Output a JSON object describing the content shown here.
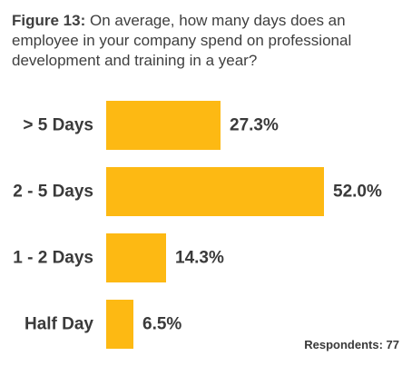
{
  "title": {
    "lead": "Figure 13:",
    "text": " On average, how many days does an employee in your company spend on professional development and training in a year?"
  },
  "footnote": "Respondents: 77",
  "colors": {
    "bar": "#FDB913",
    "text": "#3a3a3a"
  },
  "chart_data": {
    "type": "bar",
    "orientation": "horizontal",
    "categories": [
      "> 5 Days",
      "2 - 5 Days",
      "1 - 2 Days",
      "Half Day"
    ],
    "values": [
      27.3,
      52.0,
      14.3,
      6.5
    ],
    "value_labels": [
      "27.3%",
      "52.0%",
      "14.3%",
      "6.5%"
    ],
    "title": "Figure 13: On average, how many days does an employee in your company spend on professional development and training in a year?",
    "xlabel": "",
    "ylabel": "",
    "unit": "%",
    "grid": false,
    "legend": "none"
  }
}
